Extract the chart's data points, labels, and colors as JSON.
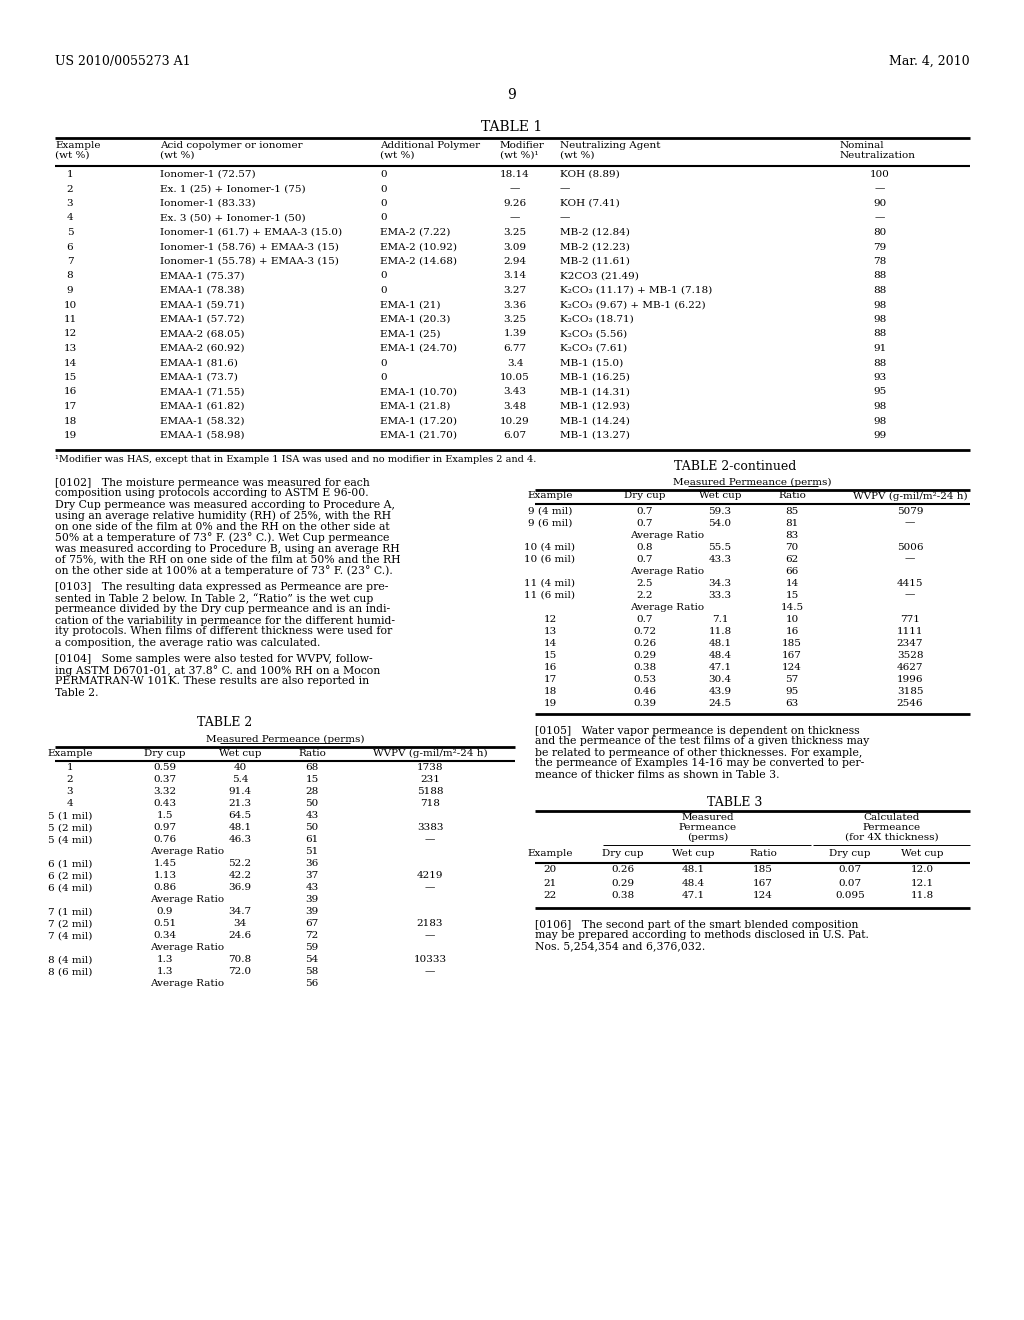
{
  "header_left": "US 2010/0055273 A1",
  "header_right": "Mar. 4, 2010",
  "page_number": "9",
  "background_color": "#ffffff",
  "text_color": "#000000",
  "table1_title": "TABLE 1",
  "table1_headers": [
    "Example",
    "Acid copolymer or ionomer\n(wt %)",
    "Additional Polymer\n(wt %)",
    "Modifier\n(wt %)¹",
    "Neutralizing Agent\n(wt %)",
    "Nominal\nNeutralization"
  ],
  "table1_rows": [
    [
      "1",
      "Ionomer-1 (72.57)",
      "0",
      "18.14",
      "KOH (8.89)",
      "100"
    ],
    [
      "2",
      "Ex. 1 (25) + Ionomer-1 (75)",
      "0",
      "—",
      "—",
      "—"
    ],
    [
      "3",
      "Ionomer-1 (83.33)",
      "0",
      "9.26",
      "KOH (7.41)",
      "90"
    ],
    [
      "4",
      "Ex. 3 (50) + Ionomer-1 (50)",
      "0",
      "—",
      "—",
      "—"
    ],
    [
      "5",
      "Ionomer-1 (61.7) + EMAA-3 (15.0)",
      "EMA-2 (7.22)",
      "3.25",
      "MB-2 (12.84)",
      "80"
    ],
    [
      "6",
      "Ionomer-1 (58.76) + EMAA-3 (15)",
      "EMA-2 (10.92)",
      "3.09",
      "MB-2 (12.23)",
      "79"
    ],
    [
      "7",
      "Ionomer-1 (55.78) + EMAA-3 (15)",
      "EMA-2 (14.68)",
      "2.94",
      "MB-2 (11.61)",
      "78"
    ],
    [
      "8",
      "EMAA-1 (75.37)",
      "0",
      "3.14",
      "K2CO3 (21.49)",
      "88"
    ],
    [
      "9",
      "EMAA-1 (78.38)",
      "0",
      "3.27",
      "K₂CO₃ (11.17) + MB-1 (7.18)",
      "88"
    ],
    [
      "10",
      "EMAA-1 (59.71)",
      "EMA-1 (21)",
      "3.36",
      "K₂CO₃ (9.67) + MB-1 (6.22)",
      "98"
    ],
    [
      "11",
      "EMAA-1 (57.72)",
      "EMA-1 (20.3)",
      "3.25",
      "K₂CO₃ (18.71)",
      "98"
    ],
    [
      "12",
      "EMAA-2 (68.05)",
      "EMA-1 (25)",
      "1.39",
      "K₂CO₃ (5.56)",
      "88"
    ],
    [
      "13",
      "EMAA-2 (60.92)",
      "EMA-1 (24.70)",
      "6.77",
      "K₂CO₃ (7.61)",
      "91"
    ],
    [
      "14",
      "EMAA-1 (81.6)",
      "0",
      "3.4",
      "MB-1 (15.0)",
      "88"
    ],
    [
      "15",
      "EMAA-1 (73.7)",
      "0",
      "10.05",
      "MB-1 (16.25)",
      "93"
    ],
    [
      "16",
      "EMAA-1 (71.55)",
      "EMA-1 (10.70)",
      "3.43",
      "MB-1 (14.31)",
      "95"
    ],
    [
      "17",
      "EMAA-1 (61.82)",
      "EMA-1 (21.8)",
      "3.48",
      "MB-1 (12.93)",
      "98"
    ],
    [
      "18",
      "EMAA-1 (58.32)",
      "EMA-1 (17.20)",
      "10.29",
      "MB-1 (14.24)",
      "98"
    ],
    [
      "19",
      "EMAA-1 (58.98)",
      "EMA-1 (21.70)",
      "6.07",
      "MB-1 (13.27)",
      "99"
    ]
  ],
  "table1_footnote": "¹Modifier was HAS, except that in Example 1 ISA was used and no modifier in Examples 2 and 4.",
  "para_0102": "[0102]   The moisture permeance was measured for each composition using protocols according to ASTM E 96-00. Dry Cup permeance was measured according to Procedure A, using an average relative humidity (RH) of 25%, with the RH on one side of the film at 0% and the RH on the other side at 50% at a temperature of 73° F. (23° C.). Wet Cup permeance was measured according to Procedure B, using an average RH of 75%, with the RH on one side of the film at 50% and the RH on the other side at 100% at a temperature of 73° F. (23° C.).",
  "para_0103": "[0103]   The resulting data expressed as Permeance are presented in Table 2 below. In Table 2, \"Ratio\" is the wet cup permeance divided by the Dry cup permeance and is an indication of the variability in permeance for the different humidity protocols. When films of different thickness were used for a composition, the average ratio was calculated.",
  "para_0104": "[0104]   Some samples were also tested for WVPV, following ASTM D6701-01, at 37.8° C. and 100% RH on a Mocon PERMATRAN-W 101K. These results are also reported in Table 2.",
  "table2_title": "TABLE 2",
  "table2_subheader": "Measured Permeance (perms)",
  "table2_col_headers": [
    "Example",
    "Dry cup",
    "Wet cup",
    "Ratio",
    "WVPV (g-mil/m²-24 h)"
  ],
  "table2_rows": [
    [
      "1",
      "0.59",
      "40",
      "68",
      "1738"
    ],
    [
      "2",
      "0.37",
      "5.4",
      "15",
      "231"
    ],
    [
      "3",
      "3.32",
      "91.4",
      "28",
      "5188"
    ],
    [
      "4",
      "0.43",
      "21.3",
      "50",
      "718"
    ],
    [
      "5 (1 mil)",
      "1.5",
      "64.5",
      "43",
      ""
    ],
    [
      "5 (2 mil)",
      "0.97",
      "48.1",
      "50",
      "3383"
    ],
    [
      "5 (4 mil)",
      "0.76",
      "46.3",
      "61",
      "—"
    ],
    [
      "",
      "Average Ratio",
      "",
      "51",
      ""
    ],
    [
      "6 (1 mil)",
      "1.45",
      "52.2",
      "36",
      ""
    ],
    [
      "6 (2 mil)",
      "1.13",
      "42.2",
      "37",
      "4219"
    ],
    [
      "6 (4 mil)",
      "0.86",
      "36.9",
      "43",
      "—"
    ],
    [
      "",
      "Average Ratio",
      "",
      "39",
      ""
    ],
    [
      "7 (1 mil)",
      "0.9",
      "34.7",
      "39",
      ""
    ],
    [
      "7 (2 mil)",
      "0.51",
      "34",
      "67",
      "2183"
    ],
    [
      "7 (4 mil)",
      "0.34",
      "24.6",
      "72",
      "—"
    ],
    [
      "",
      "Average Ratio",
      "",
      "59",
      ""
    ],
    [
      "8 (4 mil)",
      "1.3",
      "70.8",
      "54",
      "10333"
    ],
    [
      "8 (6 mil)",
      "1.3",
      "72.0",
      "58",
      "—"
    ],
    [
      "",
      "Average Ratio",
      "",
      "56",
      ""
    ]
  ],
  "table2cont_title": "TABLE 2-continued",
  "table2cont_subheader": "Measured Permeance (perms)",
  "table2cont_col_headers": [
    "Example",
    "Dry cup",
    "Wet cup",
    "Ratio",
    "WVPV (g-mil/m²-24 h)"
  ],
  "table2cont_rows": [
    [
      "9 (4 mil)",
      "0.7",
      "59.3",
      "85",
      "5079"
    ],
    [
      "9 (6 mil)",
      "0.7",
      "54.0",
      "81",
      "—"
    ],
    [
      "",
      "Average Ratio",
      "",
      "83",
      ""
    ],
    [
      "10 (4 mil)",
      "0.8",
      "55.5",
      "70",
      "5006"
    ],
    [
      "10 (6 mil)",
      "0.7",
      "43.3",
      "62",
      "—"
    ],
    [
      "",
      "Average Ratio",
      "",
      "66",
      ""
    ],
    [
      "11 (4 mil)",
      "2.5",
      "34.3",
      "14",
      "4415"
    ],
    [
      "11 (6 mil)",
      "2.2",
      "33.3",
      "15",
      "—"
    ],
    [
      "",
      "Average Ratio",
      "",
      "14.5",
      ""
    ],
    [
      "12",
      "0.7",
      "7.1",
      "10",
      "771"
    ],
    [
      "13",
      "0.72",
      "11.8",
      "16",
      "1111"
    ],
    [
      "14",
      "0.26",
      "48.1",
      "185",
      "2347"
    ],
    [
      "15",
      "0.29",
      "48.4",
      "167",
      "3528"
    ],
    [
      "16",
      "0.38",
      "47.1",
      "124",
      "4627"
    ],
    [
      "17",
      "0.53",
      "30.4",
      "57",
      "1996"
    ],
    [
      "18",
      "0.46",
      "43.9",
      "95",
      "3185"
    ],
    [
      "19",
      "0.39",
      "24.5",
      "63",
      "2546"
    ]
  ],
  "para_0105": "[0105]   Water vapor permeance is dependent on thickness and the permeance of the test films of a given thickness may be related to permeance of other thicknesses. For example, the permeance of Examples 14-16 may be converted to permeance of thicker films as shown in Table 3.",
  "table3_title": "TABLE 3",
  "table3_col1_header": [
    "",
    "Measured\nPermeance\n(perms)"
  ],
  "table3_col2_header": [
    "",
    "Calculated\nPermeance\n(for 4X thickness)"
  ],
  "table3_sub_headers": [
    "Example",
    "Dry cup",
    "Wet cup",
    "Ratio",
    "Dry cup",
    "Wet cup"
  ],
  "table3_rows": [
    [
      "20",
      "0.26",
      "48.1",
      "185",
      "0.07",
      "12.0"
    ],
    [
      "21",
      "0.29",
      "48.4",
      "167",
      "0.07",
      "12.1"
    ],
    [
      "22",
      "0.38",
      "47.1",
      "124",
      "0.095",
      "11.8"
    ]
  ],
  "para_0106": "[0106]   The second part of the smart blended composition may be prepared according to methods disclosed in U.S. Pat. Nos. 5,254,354 and 6,376,032."
}
